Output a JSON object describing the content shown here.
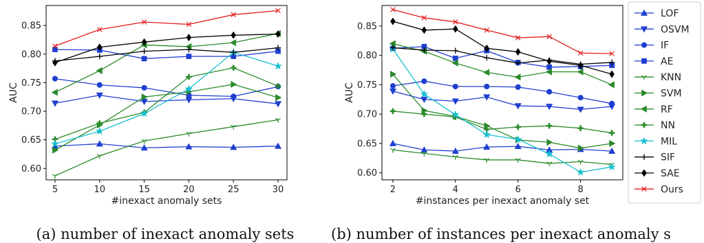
{
  "chart_data": [
    {
      "type": "line",
      "caption": "(a) number of inexact anomaly sets",
      "xlabel": "#inexact anomaly sets",
      "ylabel": "AUC",
      "x": [
        5,
        10,
        15,
        20,
        25,
        30
      ],
      "xticks": [
        "5",
        "10",
        "15",
        "20",
        "25",
        "30"
      ],
      "xlim": [
        4,
        31
      ],
      "yticks": [
        "0.60",
        "0.65",
        "0.70",
        "0.75",
        "0.80",
        "0.85"
      ],
      "ylim": [
        0.58,
        0.885
      ],
      "grid": false,
      "series": [
        {
          "name": "LOF",
          "values": [
            0.639,
            0.643,
            0.636,
            0.638,
            0.637,
            0.639
          ]
        },
        {
          "name": "OSVM",
          "values": [
            0.714,
            0.728,
            0.717,
            0.72,
            0.722,
            0.713
          ]
        },
        {
          "name": "IF",
          "values": [
            0.757,
            0.746,
            0.741,
            0.728,
            0.726,
            0.743
          ]
        },
        {
          "name": "AE",
          "values": [
            0.808,
            0.807,
            0.792,
            0.796,
            0.796,
            0.805
          ]
        },
        {
          "name": "KNN",
          "values": [
            0.587,
            0.622,
            0.648,
            0.661,
            0.673,
            0.685
          ]
        },
        {
          "name": "SVM",
          "values": [
            0.632,
            0.676,
            0.725,
            0.734,
            0.747,
            0.724
          ]
        },
        {
          "name": "RF",
          "values": [
            0.733,
            0.771,
            0.816,
            0.813,
            0.82,
            0.836
          ]
        },
        {
          "name": "NN",
          "values": [
            0.651,
            0.679,
            0.698,
            0.76,
            0.776,
            0.744
          ]
        },
        {
          "name": "MIL",
          "values": [
            0.643,
            0.665,
            0.696,
            0.739,
            0.803,
            0.779
          ]
        },
        {
          "name": "SIF",
          "values": [
            0.788,
            0.796,
            0.805,
            0.808,
            0.803,
            0.811
          ]
        },
        {
          "name": "SAE",
          "values": [
            0.785,
            0.812,
            0.821,
            0.829,
            0.833,
            0.835
          ]
        },
        {
          "name": "Ours",
          "values": [
            0.814,
            0.843,
            0.856,
            0.852,
            0.869,
            0.876
          ]
        }
      ]
    },
    {
      "type": "line",
      "caption": "(b) number of instances per inexact anomaly s",
      "xlabel": "#instances per inexact anomaly set",
      "ylabel": "AUC",
      "x": [
        2,
        3,
        4,
        5,
        6,
        7,
        8,
        9
      ],
      "xticks": [
        "2",
        "4",
        "6",
        "8"
      ],
      "xlim": [
        1.65,
        9.35
      ],
      "yticks": [
        "0.60",
        "0.65",
        "0.70",
        "0.75",
        "0.80",
        "0.85"
      ],
      "ylim": [
        0.588,
        0.885
      ],
      "grid": false,
      "series": [
        {
          "name": "LOF",
          "values": [
            0.65,
            0.639,
            0.637,
            0.644,
            0.645,
            0.639,
            0.64,
            0.637
          ]
        },
        {
          "name": "OSVM",
          "values": [
            0.739,
            0.725,
            0.722,
            0.729,
            0.714,
            0.713,
            0.708,
            0.713
          ]
        },
        {
          "name": "IF",
          "values": [
            0.748,
            0.756,
            0.747,
            0.747,
            0.746,
            0.738,
            0.728,
            0.718
          ]
        },
        {
          "name": "AE",
          "values": [
            0.812,
            0.815,
            0.795,
            0.808,
            0.788,
            0.78,
            0.781,
            0.783
          ]
        },
        {
          "name": "KNN",
          "values": [
            0.639,
            0.633,
            0.627,
            0.622,
            0.622,
            0.616,
            0.619,
            0.614
          ]
        },
        {
          "name": "SVM",
          "values": [
            0.768,
            0.706,
            0.696,
            0.68,
            0.656,
            0.652,
            0.642,
            0.65
          ]
        },
        {
          "name": "RF",
          "values": [
            0.82,
            0.807,
            0.787,
            0.771,
            0.763,
            0.772,
            0.772,
            0.75
          ]
        },
        {
          "name": "NN",
          "values": [
            0.705,
            0.7,
            0.695,
            0.674,
            0.678,
            0.68,
            0.676,
            0.668
          ]
        },
        {
          "name": "MIL",
          "values": [
            0.811,
            0.734,
            0.699,
            0.665,
            0.657,
            0.632,
            0.601,
            0.61
          ]
        },
        {
          "name": "SIF",
          "values": [
            0.813,
            0.809,
            0.808,
            0.796,
            0.787,
            0.792,
            0.785,
            0.788
          ]
        },
        {
          "name": "SAE",
          "values": [
            0.858,
            0.843,
            0.845,
            0.812,
            0.806,
            0.79,
            0.783,
            0.768
          ]
        },
        {
          "name": "Ours",
          "values": [
            0.878,
            0.864,
            0.857,
            0.843,
            0.83,
            0.832,
            0.804,
            0.803
          ]
        }
      ]
    }
  ],
  "legend": {
    "placement": "right",
    "entries": [
      {
        "name": "LOF",
        "color": "#1f3fd0",
        "marker": "triangle-up"
      },
      {
        "name": "OSVM",
        "color": "#1f3fd0",
        "marker": "triangle-down"
      },
      {
        "name": "IF",
        "color": "#1f3fd0",
        "marker": "circle"
      },
      {
        "name": "AE",
        "color": "#1f3fd0",
        "marker": "square"
      },
      {
        "name": "KNN",
        "color": "#2a8a2a",
        "marker": "tri-down"
      },
      {
        "name": "SVM",
        "color": "#2a8a2a",
        "marker": "triangle-right"
      },
      {
        "name": "RF",
        "color": "#2a8a2a",
        "marker": "triangle-left"
      },
      {
        "name": "NN",
        "color": "#2a8a2a",
        "marker": "plus-filled"
      },
      {
        "name": "MIL",
        "color": "#17becf",
        "marker": "star"
      },
      {
        "name": "SIF",
        "color": "#000000",
        "marker": "plus"
      },
      {
        "name": "SAE",
        "color": "#000000",
        "marker": "diamond"
      },
      {
        "name": "Ours",
        "color": "#e31a1c",
        "marker": "x"
      }
    ]
  }
}
